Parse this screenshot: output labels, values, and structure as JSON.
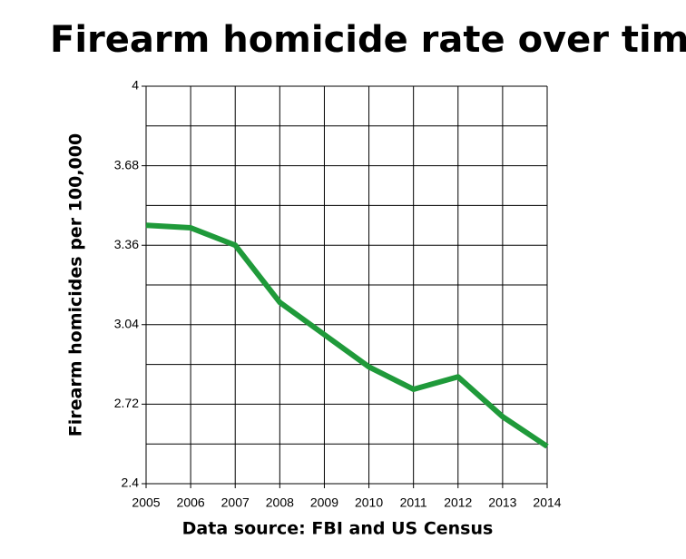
{
  "chart_data": {
    "type": "line",
    "title": "Firearm homicide rate over time",
    "y_label": "Firearm homicides per 100,000",
    "x_label": "Data source: FBI and US Census",
    "x": [
      2005,
      2006,
      2007,
      2008,
      2009,
      2010,
      2011,
      2012,
      2013,
      2014
    ],
    "series": [
      {
        "color": "#1f9a3a",
        "values": [
          3.44,
          3.43,
          3.36,
          3.13,
          3.0,
          2.87,
          2.78,
          2.83,
          2.67,
          2.55
        ]
      }
    ],
    "xlim": [
      2005,
      2014
    ],
    "xticks": [
      2005,
      2006,
      2007,
      2008,
      2009,
      2010,
      2011,
      2012,
      2013,
      2014
    ],
    "ylim": [
      2.4,
      4
    ],
    "yticks": [
      2.4,
      2.72,
      3.04,
      3.36,
      3.68,
      4
    ],
    "minor_yticks": [
      2.56,
      2.88,
      3.2,
      3.52,
      3.84
    ],
    "grid": true
  }
}
